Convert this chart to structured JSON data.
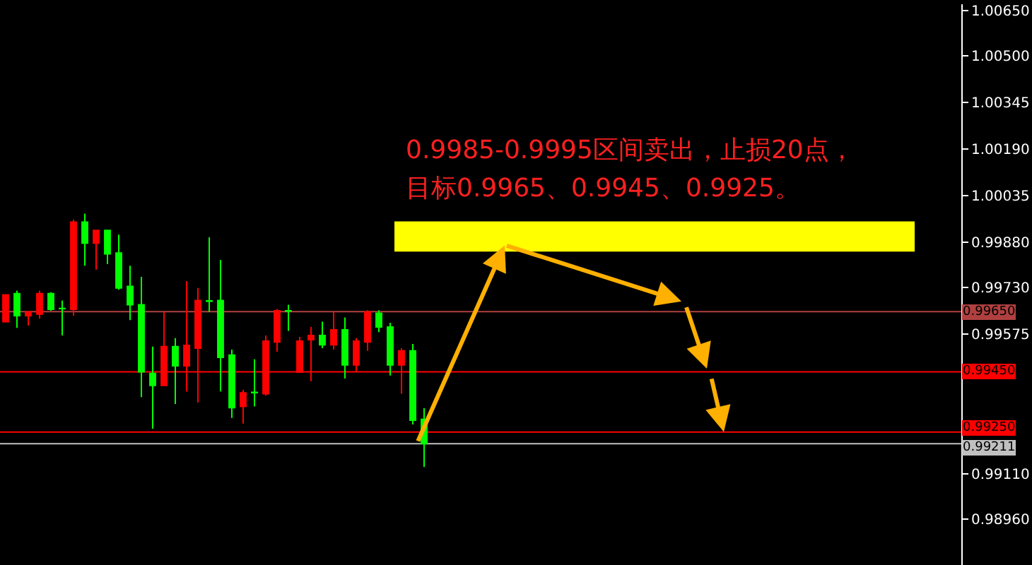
{
  "chart_data": {
    "type": "candlestick",
    "categories": [
      null,
      null,
      null,
      null,
      null,
      null,
      null,
      null,
      null,
      null,
      null,
      null,
      null,
      null,
      null,
      null,
      null,
      null,
      null,
      null,
      null,
      null,
      null,
      null,
      null,
      null,
      null,
      null,
      null,
      null,
      null,
      null,
      null,
      null,
      null,
      null,
      null,
      null,
      null,
      null,
      null,
      null,
      null,
      null,
      null,
      null,
      null,
      null,
      null,
      null,
      null,
      null,
      null,
      null,
      null,
      null,
      null,
      null,
      null,
      null,
      null,
      null,
      null,
      null,
      null,
      null,
      null,
      null,
      null,
      null,
      null,
      null,
      null,
      null,
      null,
      null,
      null,
      null,
      null,
      null,
      null,
      null,
      null,
      null,
      null
    ],
    "ohlc": [
      [
        0.99617,
        0.99706,
        0.99617,
        0.99706
      ],
      [
        0.9971,
        0.9972,
        0.99596,
        0.99637
      ],
      [
        0.99637,
        0.99649,
        0.99604,
        0.99649
      ],
      [
        0.99642,
        0.9972,
        0.99627,
        0.9971
      ],
      [
        0.9971,
        0.99715,
        0.99653,
        0.99658
      ],
      [
        0.99661,
        0.99687,
        0.99571,
        0.9966
      ],
      [
        0.99658,
        0.99956,
        0.99637,
        0.99948
      ],
      [
        0.99948,
        0.99976,
        0.99803,
        0.99878
      ],
      [
        0.99878,
        0.9992,
        0.9979,
        0.9992
      ],
      [
        0.9992,
        0.9992,
        0.99808,
        0.99842
      ],
      [
        0.99845,
        0.99906,
        0.99723,
        0.99729
      ],
      [
        0.99734,
        0.99803,
        0.99622,
        0.99673
      ],
      [
        0.99673,
        0.99766,
        0.99366,
        0.9945
      ],
      [
        0.99445,
        0.99534,
        0.99261,
        0.99405
      ],
      [
        0.99405,
        0.99649,
        0.99405,
        0.99534
      ],
      [
        0.99534,
        0.99562,
        0.99343,
        0.9947
      ],
      [
        0.9947,
        0.99752,
        0.99385,
        0.99538
      ],
      [
        0.99529,
        0.99729,
        0.99348,
        0.99687
      ],
      [
        0.99686,
        0.99897,
        0.99649,
        0.99685
      ],
      [
        0.99687,
        0.99822,
        0.99385,
        0.99498
      ],
      [
        0.99506,
        0.99524,
        0.99297,
        0.99331
      ],
      [
        0.99335,
        0.9939,
        0.99278,
        0.9938
      ],
      [
        0.99382,
        0.99492,
        0.99335,
        0.99381
      ],
      [
        0.99377,
        0.99571,
        0.99371,
        0.99552
      ],
      [
        0.99549,
        0.99659,
        0.99517,
        0.99653
      ],
      [
        0.99653,
        0.99673,
        0.99586,
        0.99652
      ],
      [
        0.99449,
        0.99566,
        0.99449,
        0.99552
      ],
      [
        0.99557,
        0.99599,
        0.99419,
        0.99571
      ],
      [
        0.99571,
        0.99617,
        0.99529,
        0.9954
      ],
      [
        0.9954,
        0.99649,
        0.99524,
        0.9959
      ],
      [
        0.9959,
        0.99631,
        0.99428,
        0.99473
      ],
      [
        0.99473,
        0.99562,
        0.99451,
        0.99552
      ],
      [
        0.99549,
        0.99655,
        0.9952,
        0.99649
      ],
      [
        0.99645,
        0.99655,
        0.99582,
        0.99599
      ],
      [
        0.99599,
        0.99613,
        0.99438,
        0.99473
      ],
      [
        0.99473,
        0.99529,
        0.99377,
        0.9952
      ],
      [
        0.9952,
        0.99543,
        0.99275,
        0.99289
      ],
      [
        0.99292,
        0.99329,
        0.99134,
        0.99211
      ],
      null,
      null,
      null,
      null,
      null,
      null,
      null,
      null,
      null,
      null,
      null,
      null,
      null,
      null,
      null,
      null,
      null,
      null,
      null,
      null,
      null,
      null,
      null,
      null,
      null,
      null,
      null,
      null,
      null,
      null,
      null,
      null,
      null,
      null,
      null,
      null,
      null,
      null,
      null,
      null,
      null,
      null,
      null,
      null,
      null,
      null,
      null
    ],
    "colors": [
      "#ff0000",
      "#00ff00",
      "#ff0000",
      "#ff0000",
      "#00ff00",
      "#00ff00",
      "#ff0000",
      "#00ff00",
      "#ff0000",
      "#00ff00",
      "#00ff00",
      "#00ff00",
      "#00ff00",
      "#00ff00",
      "#ff0000",
      "#00ff00",
      "#ff0000",
      "#ff0000",
      "#00ff00",
      "#00ff00",
      "#00ff00",
      "#ff0000",
      "#00ff00",
      "#ff0000",
      "#ff0000",
      "#00ff00",
      "#ff0000",
      "#ff0000",
      "#00ff00",
      "#ff0000",
      "#00ff00",
      "#ff0000",
      "#ff0000",
      "#00ff00",
      "#00ff00",
      "#ff0000",
      "#00ff00",
      "#00ff00",
      null,
      null,
      null,
      null,
      null,
      null,
      null,
      null,
      null,
      null,
      null,
      null,
      null,
      null,
      null,
      null,
      null,
      null,
      null,
      null,
      null,
      null,
      null,
      null,
      null,
      null,
      null,
      null,
      null,
      null,
      null,
      null,
      null,
      null,
      null,
      null,
      null,
      null,
      null,
      null,
      null,
      null,
      null,
      null,
      null,
      null,
      null
    ],
    "ylim": [
      0.98808,
      1.00672
    ],
    "yticks": [
      {
        "value": 1.0065,
        "label": "1.00650"
      },
      {
        "value": 1.005,
        "label": "1.00500"
      },
      {
        "value": 1.00345,
        "label": "1.00345"
      },
      {
        "value": 1.0019,
        "label": "1.00190"
      },
      {
        "value": 1.00035,
        "label": "1.00035"
      },
      {
        "value": 0.9988,
        "label": "0.99880"
      },
      {
        "value": 0.9973,
        "label": "0.99730"
      },
      {
        "value": 0.99575,
        "label": "0.99575"
      },
      {
        "value": 0.9911,
        "label": "0.99110"
      },
      {
        "value": 0.9896,
        "label": "0.98960"
      }
    ],
    "ref_lines": [
      {
        "axis": "y",
        "value": 0.9965,
        "label": "0.99650",
        "color": "#b04040"
      },
      {
        "axis": "y",
        "value": 0.9945,
        "label": "0.99450",
        "color": "#ff0000"
      },
      {
        "axis": "y",
        "value": 0.9925,
        "label": "0.99250",
        "color": "#ff0000"
      },
      {
        "axis": "y",
        "value": 0.99211,
        "label": "0.99211",
        "color": "#c0c0c0"
      }
    ],
    "bands": [
      {
        "axis": "y",
        "from": 0.9985,
        "to": 0.9995,
        "color": "#ffff00"
      }
    ],
    "annotations": [
      "0.9985-0.9995区间卖出，止损20点，",
      "目标0.9965、0.9945、0.9925。"
    ],
    "grid": false
  }
}
